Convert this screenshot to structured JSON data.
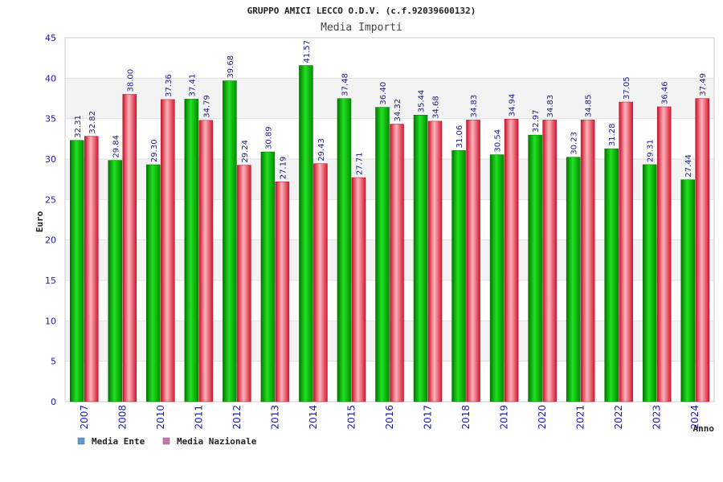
{
  "chart_data": {
    "type": "bar",
    "title": "GRUPPO AMICI LECCO O.D.V. (c.f.92039600132)",
    "subtitle": "Media Importi",
    "xlabel": "Anno",
    "ylabel": "Euro",
    "ylim": [
      0,
      45
    ],
    "yticks": [
      0,
      5,
      10,
      15,
      20,
      25,
      30,
      35,
      40,
      45
    ],
    "grid": true,
    "legend_position": "bottom-left",
    "categories": [
      "2007",
      "2008",
      "2010",
      "2011",
      "2012",
      "2013",
      "2014",
      "2015",
      "2016",
      "2017",
      "2018",
      "2019",
      "2020",
      "2021",
      "2022",
      "2023",
      "2024"
    ],
    "series": [
      {
        "name": "Media Ente",
        "legend_color": "#5b9bd5",
        "bar_color": "#00b400",
        "values": [
          32.31,
          29.84,
          29.3,
          37.41,
          39.68,
          30.89,
          41.57,
          37.48,
          36.4,
          35.44,
          31.06,
          30.54,
          32.97,
          30.23,
          31.28,
          29.31,
          27.44
        ],
        "labels": [
          "32.31",
          "29.84",
          "29.30",
          "37.41",
          "39.68",
          "30.89",
          "41.57",
          "37.48",
          "36.40",
          "35.44",
          "31.06",
          "30.54",
          "32.97",
          "30.23",
          "31.28",
          "29.31",
          "27.44"
        ]
      },
      {
        "name": "Media Nazionale",
        "legend_color": "#d070b0",
        "bar_color": "#e8283c",
        "values": [
          32.82,
          38.0,
          37.36,
          34.79,
          29.24,
          27.19,
          29.43,
          27.71,
          34.32,
          34.68,
          34.83,
          34.94,
          34.83,
          34.85,
          37.05,
          36.46,
          37.49
        ],
        "labels": [
          "32.82",
          "38.00",
          "37.36",
          "34.79",
          "29.24",
          "27.19",
          "29.43",
          "27.71",
          "34.32",
          "34.68",
          "34.83",
          "34.94",
          "34.83",
          "34.85",
          "37.05",
          "36.46",
          "37.49"
        ]
      }
    ]
  }
}
